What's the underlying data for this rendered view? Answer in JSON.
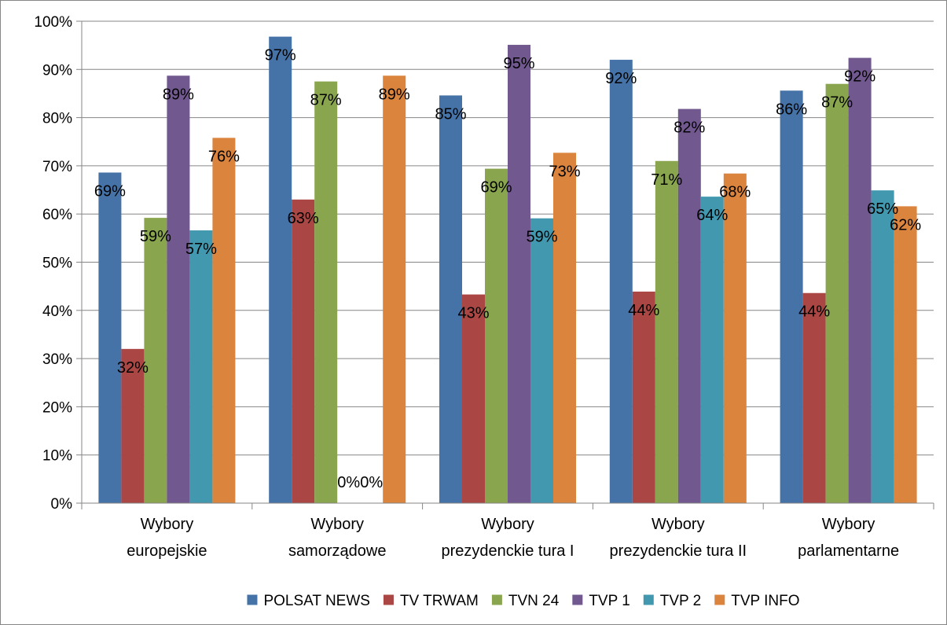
{
  "chart_data": {
    "type": "bar",
    "title": "",
    "xlabel": "",
    "ylabel": "",
    "ylim": [
      0,
      100
    ],
    "y_ticks": [
      "0%",
      "10%",
      "20%",
      "30%",
      "40%",
      "50%",
      "60%",
      "70%",
      "80%",
      "90%",
      "100%"
    ],
    "grid": true,
    "legend_position": "bottom",
    "categories": [
      [
        "Wybory",
        "europejskie"
      ],
      [
        "Wybory",
        "samorządowe"
      ],
      [
        "Wybory",
        "prezydenckie tura I"
      ],
      [
        "Wybory",
        "prezydenckie tura II"
      ],
      [
        "Wybory",
        "parlamentarne"
      ]
    ],
    "series": [
      {
        "name": "POLSAT NEWS",
        "color": "#4572A7",
        "values": [
          68.6,
          96.8,
          84.6,
          92.0,
          85.6
        ],
        "labels": [
          "69%",
          "97%",
          "85%",
          "92%",
          "86%"
        ]
      },
      {
        "name": "TV TRWAM",
        "color": "#AA4643",
        "values": [
          32.0,
          63.0,
          43.3,
          43.9,
          43.6
        ],
        "labels": [
          "32%",
          "63%",
          "43%",
          "44%",
          "44%"
        ]
      },
      {
        "name": "TVN 24",
        "color": "#89A54E",
        "values": [
          59.2,
          87.5,
          69.4,
          71.0,
          87.0
        ],
        "labels": [
          "59%",
          "87%",
          "69%",
          "71%",
          "87%"
        ]
      },
      {
        "name": "TVP 1",
        "color": "#71588F",
        "values": [
          88.7,
          0.0,
          95.1,
          81.8,
          92.4
        ],
        "labels": [
          "89%",
          "0%",
          "95%",
          "82%",
          "92%"
        ]
      },
      {
        "name": "TVP 2",
        "color": "#4198AF",
        "values": [
          56.6,
          0.0,
          59.1,
          63.6,
          64.9
        ],
        "labels": [
          "57%",
          "0%",
          "59%",
          "64%",
          "65%"
        ]
      },
      {
        "name": "TVP INFO",
        "color": "#DB843D",
        "values": [
          75.8,
          88.7,
          72.7,
          68.4,
          61.6
        ],
        "labels": [
          "76%",
          "89%",
          "73%",
          "68%",
          "62%"
        ]
      }
    ]
  }
}
